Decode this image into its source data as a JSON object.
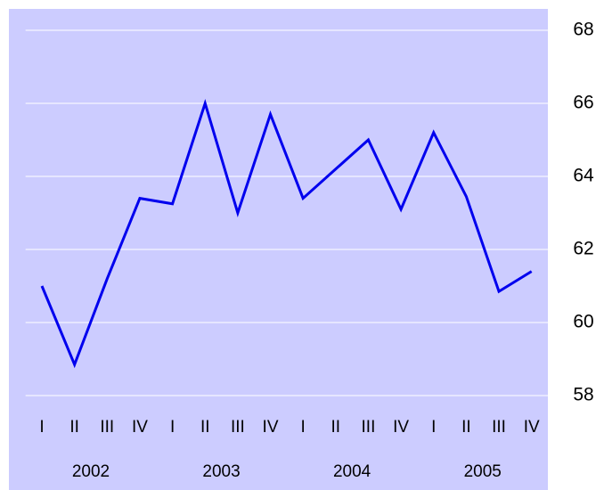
{
  "chart_data": {
    "type": "line",
    "categories": [
      "I",
      "II",
      "III",
      "IV",
      "I",
      "II",
      "III",
      "IV",
      "I",
      "II",
      "III",
      "IV",
      "I",
      "II",
      "III",
      "IV"
    ],
    "category_groups": [
      "2002",
      "2003",
      "2004",
      "2005"
    ],
    "values": [
      61.0,
      58.85,
      61.2,
      63.4,
      63.25,
      66.0,
      63.0,
      65.7,
      63.4,
      64.2,
      65.0,
      63.1,
      65.2,
      63.45,
      60.85,
      61.4
    ],
    "color": "#0000ee",
    "ylim": [
      58,
      68
    ],
    "yticks": [
      58,
      60,
      62,
      64,
      66,
      68
    ],
    "grid": true,
    "y_axis_side": "right"
  }
}
